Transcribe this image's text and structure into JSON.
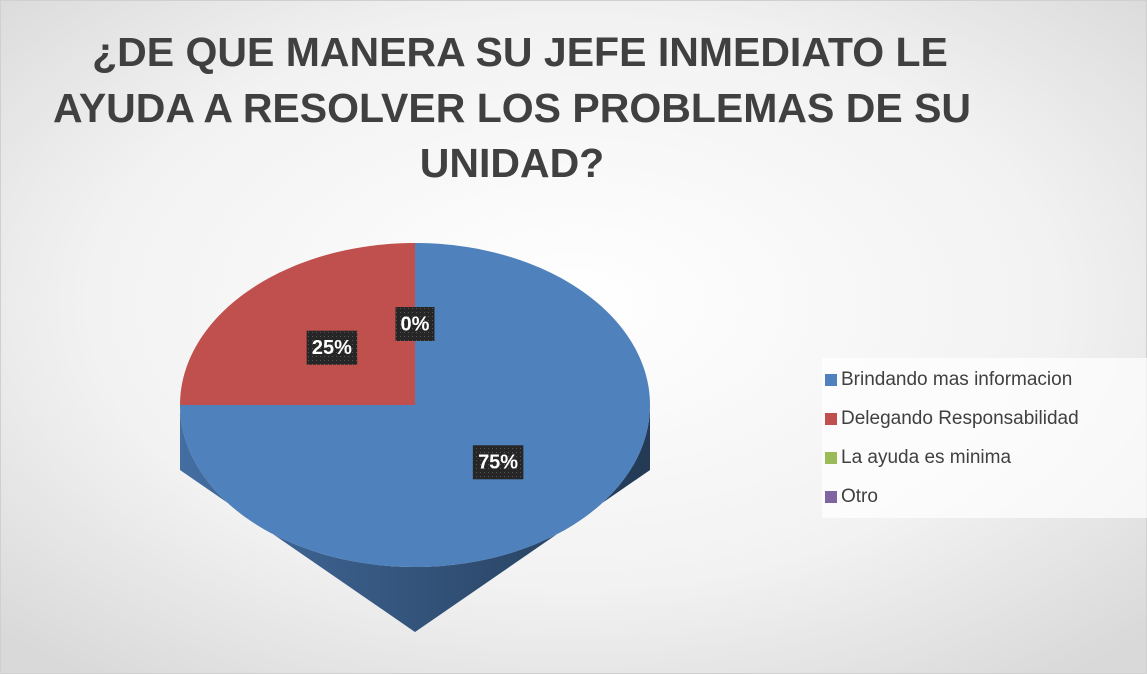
{
  "chart_data": {
    "type": "pie",
    "title": [
      "¿DE QUE MANERA SU JEFE INMEDIATO LE",
      "AYUDA A RESOLVER LOS PROBLEMAS DE SU",
      "UNIDAD?"
    ],
    "categories": [
      "Brindando mas informacion",
      "Delegando Responsabilidad",
      "La ayuda es minima",
      "Otro"
    ],
    "values": [
      75,
      25,
      0,
      0
    ],
    "value_labels": [
      "75%",
      "25%",
      "0%",
      "0%"
    ],
    "colors": [
      "#4f81bd",
      "#c0504d",
      "#9bbb59",
      "#8064a2"
    ],
    "legend": "right"
  }
}
